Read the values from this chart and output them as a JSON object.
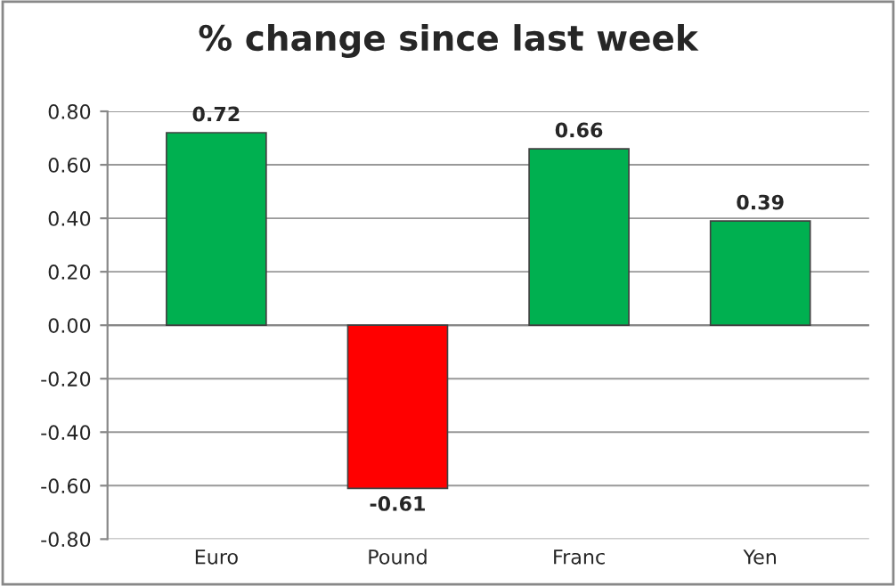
{
  "chart_data": {
    "type": "bar",
    "title": "% change since last week",
    "categories": [
      "Euro",
      "Pound",
      "Franc",
      "Yen"
    ],
    "values": [
      0.72,
      -0.61,
      0.66,
      0.39
    ],
    "colors": [
      "#00b050",
      "#ff0000",
      "#00b050",
      "#00b050"
    ],
    "ylim": [
      -0.8,
      0.8
    ],
    "yticks": [
      {
        "value": -0.8,
        "label": "-0.80"
      },
      {
        "value": -0.6,
        "label": "-0.60"
      },
      {
        "value": -0.4,
        "label": "-0.40"
      },
      {
        "value": -0.2,
        "label": "-0.20"
      },
      {
        "value": 0,
        "label": "0.00"
      },
      {
        "value": 0.2,
        "label": "0.20"
      },
      {
        "value": 0.4,
        "label": "0.40"
      },
      {
        "value": 0.6,
        "label": "0.60"
      },
      {
        "value": 0.8,
        "label": "0.80"
      }
    ],
    "grid": "y",
    "data_labels": true,
    "legend": false
  }
}
